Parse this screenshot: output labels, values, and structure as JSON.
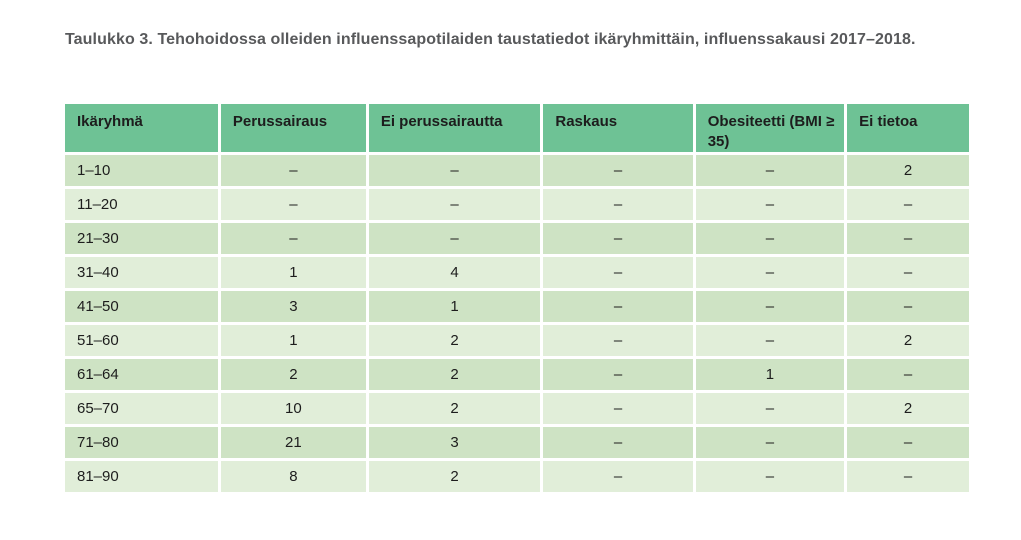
{
  "title": "Taulukko 3. Tehohoidossa olleiden influenssapotilaiden taustatiedot ikäryhmittäin, influenssakausi 2017–2018.",
  "chart_data": {
    "type": "table",
    "columns": [
      "Ikäryhmä",
      "Perussairaus",
      "Ei perussairautta",
      "Raskaus",
      "Obesiteetti (BMI ≥ 35)",
      "Ei tietoa"
    ],
    "rows": [
      [
        "1–10",
        "–",
        "–",
        "–",
        "–",
        "2"
      ],
      [
        "11–20",
        "–",
        "–",
        "–",
        "–",
        "–"
      ],
      [
        "21–30",
        "–",
        "–",
        "–",
        "–",
        "–"
      ],
      [
        "31–40",
        "1",
        "4",
        "–",
        "–",
        "–"
      ],
      [
        "41–50",
        "3",
        "1",
        "–",
        "–",
        "–"
      ],
      [
        "51–60",
        "1",
        "2",
        "–",
        "–",
        "2"
      ],
      [
        "61–64",
        "2",
        "2",
        "–",
        "1",
        "–"
      ],
      [
        "65–70",
        "10",
        "2",
        "–",
        "–",
        "2"
      ],
      [
        "71–80",
        "21",
        "3",
        "–",
        "–",
        "–"
      ],
      [
        "81–90",
        "8",
        "2",
        "–",
        "–",
        "–"
      ]
    ]
  },
  "colors": {
    "header_bg": "#6ec295",
    "row_odd": "#cee3c4",
    "row_even": "#e1eed9",
    "title_color": "#58595b",
    "cell_text": "#1d1d1d"
  }
}
